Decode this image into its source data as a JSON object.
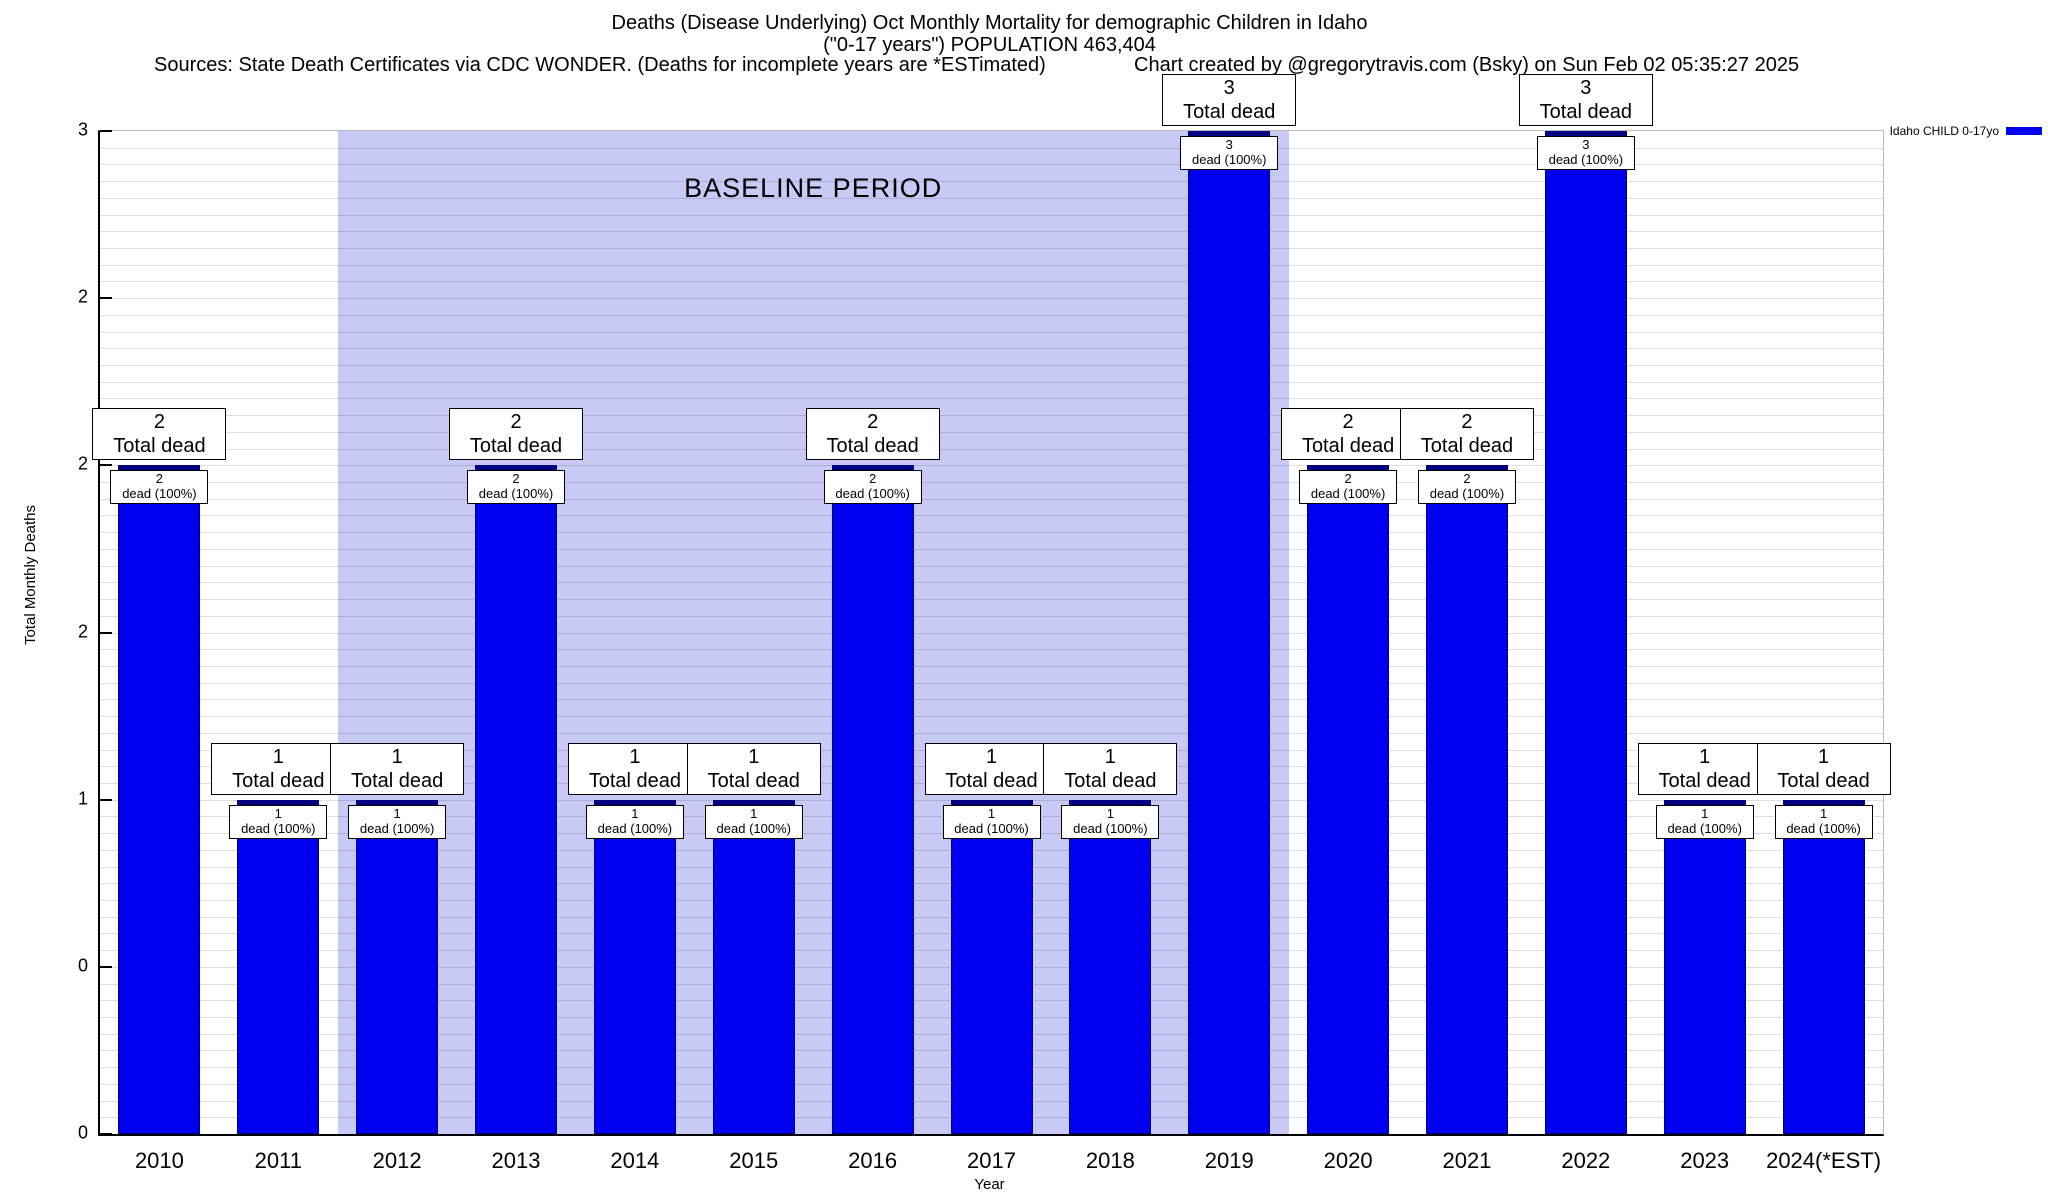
{
  "header": {
    "title_line1": "Deaths (Disease Underlying) Oct Monthly Mortality for demographic Children in Idaho",
    "title_line2": "(\"0-17 years\") POPULATION 463,404",
    "sources": "Sources: State Death Certificates via CDC WONDER. (Deaths for incomplete years are *ESTimated)",
    "credit": "Chart created by @gregorytravis.com (Bsky) on Sun Feb 02 05:35:27 2025"
  },
  "chart_data": {
    "type": "bar",
    "title": "Deaths (Disease Underlying) Oct Monthly Mortality for demographic Children in Idaho (\"0-17 years\") POPULATION 463,404",
    "xlabel": "Year",
    "ylabel": "Total Monthly Deaths",
    "categories": [
      "2010",
      "2011",
      "2012",
      "2013",
      "2014",
      "2015",
      "2016",
      "2017",
      "2018",
      "2019",
      "2020",
      "2021",
      "2022",
      "2023",
      "2024(*EST)"
    ],
    "values": [
      2,
      1,
      1,
      2,
      1,
      1,
      2,
      1,
      1,
      3,
      2,
      2,
      3,
      1,
      1
    ],
    "series": [
      {
        "name": "Idaho CHILD 0-17yo",
        "values": [
          2,
          1,
          1,
          2,
          1,
          1,
          2,
          1,
          1,
          3,
          2,
          2,
          3,
          1,
          1
        ]
      }
    ],
    "ylim": [
      0,
      3
    ],
    "grid_step": 0.05,
    "grid_on": true,
    "ytick_values": [
      0,
      0.5,
      1,
      1.5,
      2,
      2.5,
      3
    ],
    "ytick_labels": [
      "0",
      "0",
      "1",
      "2",
      "2",
      "2",
      "3"
    ],
    "annotations": {
      "total_text": "Total dead",
      "pct_text": "dead (100%)"
    },
    "baseline_region": {
      "label": "BASELINE PERIOD",
      "start_category": "2012",
      "end_category": "2019",
      "color": "#c9c9f6"
    },
    "legend": [
      {
        "label": "Idaho CHILD 0-17yo",
        "color": "#0000f0"
      }
    ],
    "legend_position": "top-right-outside",
    "bar_color": "#0000f0",
    "bar_cap_color": "#000080"
  }
}
